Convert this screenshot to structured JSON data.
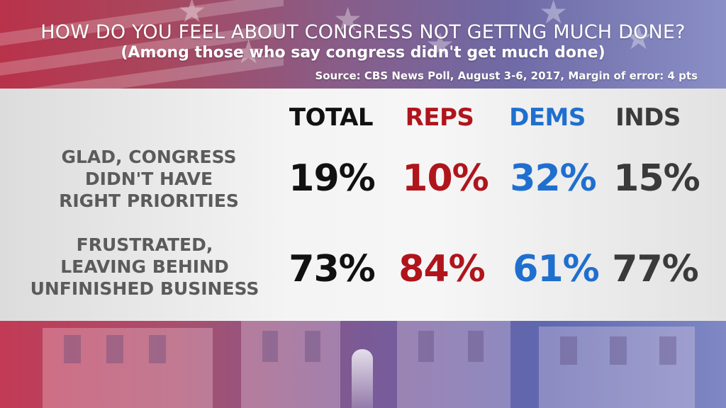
{
  "colors": {
    "total": "#111111",
    "reps": "#b0151c",
    "dems": "#1f6fcf",
    "inds": "#3a3a3a",
    "label": "#5b5b5b"
  },
  "chart_data": {
    "type": "table",
    "title": "HOW DO YOU FEEL ABOUT CONGRESS NOT GETTNG MUCH DONE?",
    "subtitle": "(Among those who say congress didn't get much done)",
    "source": "Source: CBS News Poll, August 3-6, 2017, Margin of error: 4 pts",
    "columns": [
      "TOTAL",
      "REPS",
      "DEMS",
      "INDS"
    ],
    "rows": [
      {
        "label_lines": [
          "GLAD, CONGRESS",
          "DIDN'T HAVE",
          "RIGHT PRIORITIES"
        ],
        "values": [
          "19%",
          "10%",
          "32%",
          "15%"
        ]
      },
      {
        "label_lines": [
          "FRUSTRATED,",
          "LEAVING BEHIND",
          "UNFINISHED BUSINESS"
        ],
        "values": [
          "73%",
          "84%",
          "61%",
          "77%"
        ]
      }
    ]
  }
}
